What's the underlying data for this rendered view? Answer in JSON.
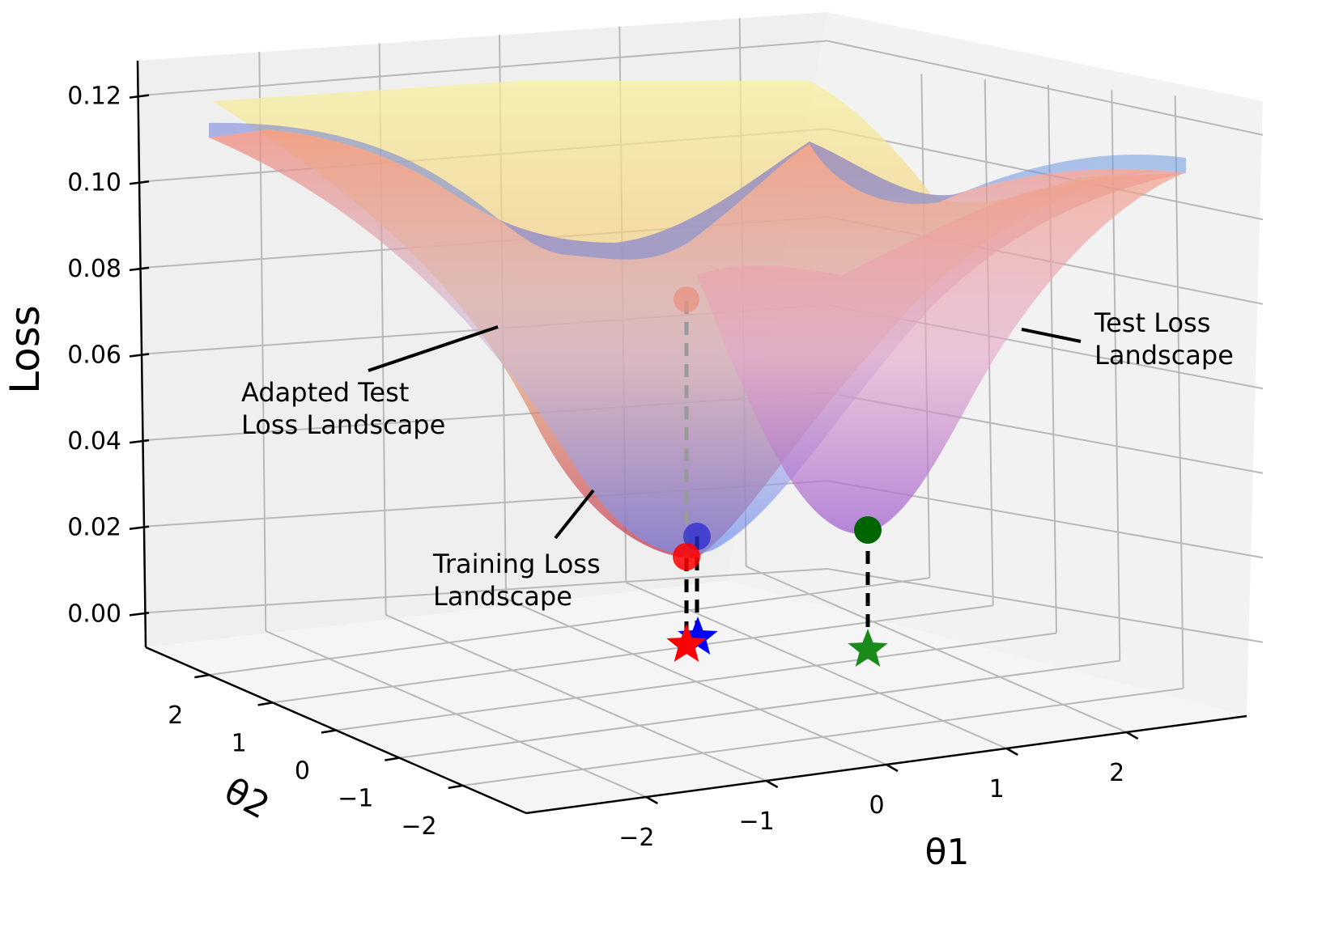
{
  "chart_data": {
    "type": "surface3d",
    "title": "",
    "zlabel": "Loss",
    "xlabel": "θ1",
    "ylabel": "θ2",
    "xlim": [
      -3,
      3
    ],
    "ylim": [
      -3,
      3
    ],
    "zlim": [
      -0.008,
      0.128
    ],
    "x_ticks": [
      "−2",
      "−1",
      "0",
      "1",
      "2"
    ],
    "y_ticks": [
      "2",
      "1",
      "0",
      "−1",
      "−2"
    ],
    "z_ticks": [
      "0.00",
      "0.02",
      "0.04",
      "0.06",
      "0.08",
      "0.10",
      "0.12"
    ],
    "z_tick_values": [
      0.0,
      0.02,
      0.04,
      0.06,
      0.08,
      0.1,
      0.12
    ],
    "series": [
      {
        "name": "Training Loss Landscape",
        "minimum": {
          "theta1": -1.3,
          "theta2": 0.0,
          "loss": 0.014
        },
        "color": "#5b86e5"
      },
      {
        "name": "Adapted Test Loss Landscape",
        "minimum": {
          "theta1": -1.3,
          "theta2": 0.0,
          "loss": 0.018
        },
        "color": "#f3e06a"
      },
      {
        "name": "Test Loss Landscape",
        "minimum": {
          "theta1": 0.3,
          "theta2": 0.0,
          "loss": 0.02
        },
        "color": "#b86bd0"
      }
    ],
    "markers": [
      {
        "kind": "point",
        "color": "#e89080",
        "theta1": -1.3,
        "theta2": 0.0,
        "loss": 0.074
      },
      {
        "kind": "point",
        "color": "#2a2ad0",
        "theta1": -1.3,
        "theta2": 0.0,
        "loss": 0.018
      },
      {
        "kind": "point",
        "color": "#ff0000",
        "theta1": -1.3,
        "theta2": 0.0,
        "loss": 0.014
      },
      {
        "kind": "point",
        "color": "#006400",
        "theta1": 0.3,
        "theta2": 0.0,
        "loss": 0.02
      },
      {
        "kind": "star",
        "color": "#0000ff",
        "theta1": -1.25,
        "theta2": 0.0,
        "loss": -0.002
      },
      {
        "kind": "star",
        "color": "#ff0000",
        "theta1": -1.3,
        "theta2": 0.0,
        "loss": -0.004
      },
      {
        "kind": "star",
        "color": "#1a8a1a",
        "theta1": 0.3,
        "theta2": 0.0,
        "loss": -0.005
      }
    ],
    "annotations": [
      {
        "lines": [
          "Adapted Test",
          "Loss Landscape"
        ],
        "target": "Adapted Test Loss Landscape"
      },
      {
        "lines": [
          "Training Loss",
          "Landscape"
        ],
        "target": "Training Loss Landscape"
      },
      {
        "lines": [
          "Test Loss",
          "Landscape"
        ],
        "target": "Test Loss Landscape"
      }
    ]
  }
}
